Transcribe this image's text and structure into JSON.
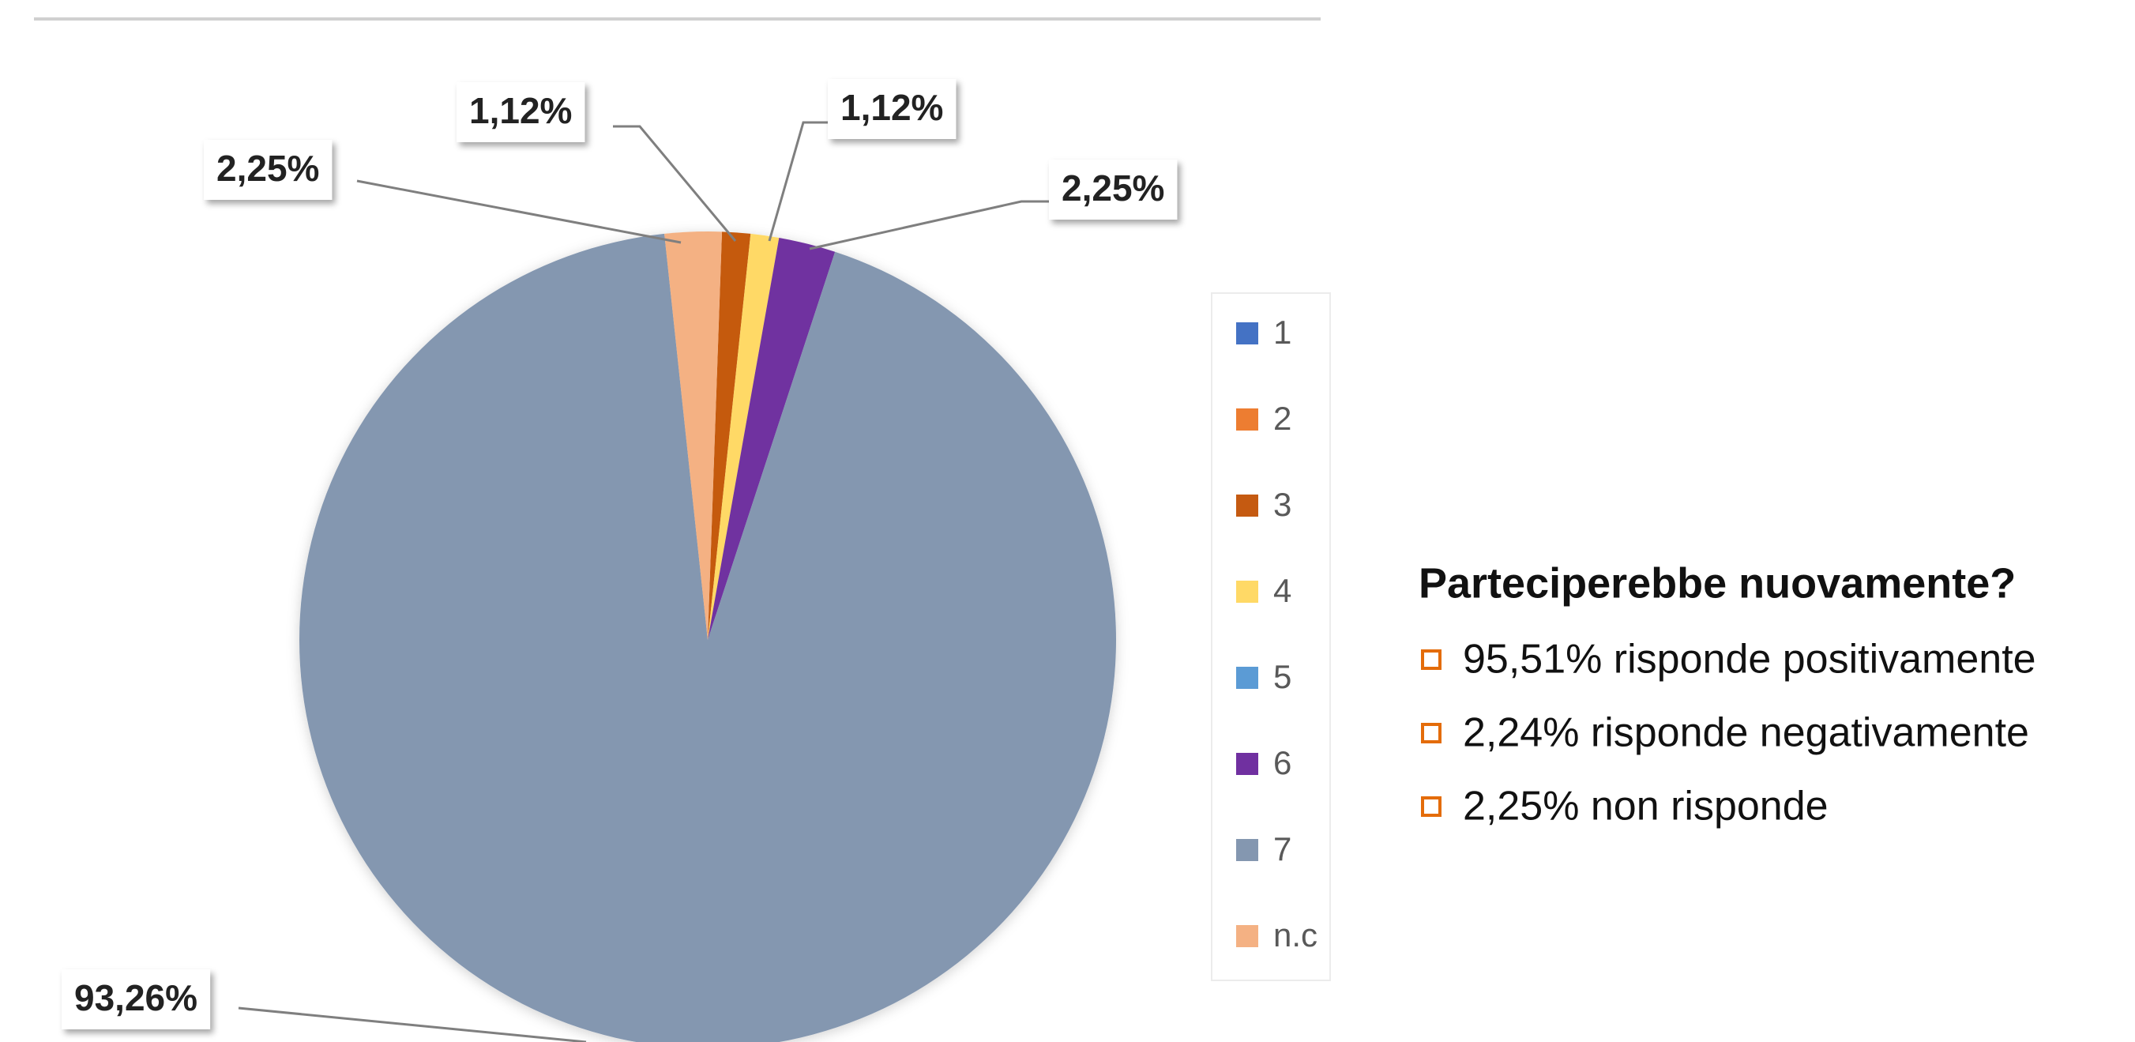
{
  "chart_data": {
    "type": "pie",
    "categories": [
      "1",
      "2",
      "3",
      "4",
      "5",
      "6",
      "7",
      "n.c"
    ],
    "values": [
      0,
      0,
      1.12,
      1.12,
      0,
      2.25,
      93.26,
      2.25
    ],
    "value_labels": [
      null,
      null,
      "1,12%",
      "1,12%",
      null,
      "2,25%",
      "93,26%",
      "2,25%"
    ],
    "colors": [
      "#4472c4",
      "#ed7d31",
      "#c55a11",
      "#ffd966",
      "#5b9bd5",
      "#7030a0",
      "#8497b0",
      "#f4b183"
    ],
    "legend": "right",
    "annotations": {
      "title": "Parteciperebbe nuovamente?",
      "items": [
        "95,51% risponde positivamente",
        "2,24% risponde negativamente",
        "2,25% non risponde"
      ]
    }
  }
}
